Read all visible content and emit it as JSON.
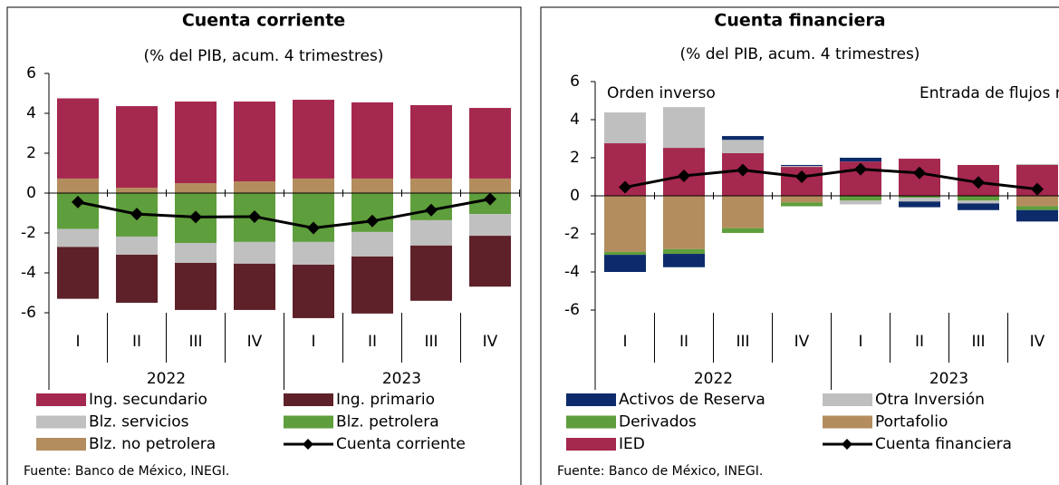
{
  "chart_data": [
    {
      "type": "bar",
      "title": "Cuenta corriente",
      "subtitle": "(% del PIB, acum. 4 trimestres)",
      "categories": [
        "I",
        "II",
        "III",
        "IV",
        "I",
        "II",
        "III",
        "IV"
      ],
      "years": [
        "2022",
        "2023"
      ],
      "ylim": [
        -6,
        6
      ],
      "yticks": [
        -6,
        -4,
        -2,
        0,
        2,
        4,
        6
      ],
      "series": [
        {
          "name": "Blz. no petrolera",
          "color": "#b38d5e",
          "values": [
            0.73,
            0.27,
            0.5,
            0.59,
            0.73,
            0.73,
            0.73,
            0.73
          ]
        },
        {
          "name": "Ing. secundario",
          "color": "#a5284f",
          "values": [
            4.02,
            4.09,
            4.09,
            4.0,
            3.95,
            3.82,
            3.68,
            3.54
          ]
        },
        {
          "name": "Blz. petrolera",
          "color": "#5f9e3c",
          "values": [
            -1.8,
            -2.18,
            -2.5,
            -2.45,
            -2.45,
            -1.95,
            -1.36,
            -1.05
          ]
        },
        {
          "name": "Blz. servicios",
          "color": "#c0c0c0",
          "values": [
            -0.9,
            -0.91,
            -1.0,
            -1.09,
            -1.14,
            -1.23,
            -1.27,
            -1.09
          ]
        },
        {
          "name": "Ing. primario",
          "color": "#5e2129",
          "values": [
            -2.6,
            -2.41,
            -2.36,
            -2.32,
            -2.68,
            -2.86,
            -2.77,
            -2.55
          ]
        },
        {
          "name": "Cuenta corriente",
          "type": "line",
          "color": "#000000",
          "values": [
            -0.45,
            -1.05,
            -1.2,
            -1.18,
            -1.75,
            -1.4,
            -0.85,
            -0.3
          ]
        }
      ],
      "source": "Fuente: Banco de México, INEGI."
    },
    {
      "type": "bar",
      "title": "Cuenta financiera",
      "subtitle": "(% del PIB, acum. 4 trimestres)",
      "annotations": [
        "Orden inverso",
        "Entrada de flujos netos"
      ],
      "categories": [
        "I",
        "II",
        "III",
        "IV",
        "I",
        "II",
        "III",
        "IV"
      ],
      "years": [
        "2022",
        "2023"
      ],
      "ylim": [
        -6,
        6
      ],
      "yticks": [
        -6,
        -4,
        -2,
        0,
        2,
        4,
        6
      ],
      "series": [
        {
          "name": "IED",
          "color": "#a5284f",
          "values": [
            2.76,
            2.52,
            2.24,
            1.52,
            1.8,
            1.95,
            1.62,
            1.62
          ]
        },
        {
          "name": "Portafolio",
          "color": "#b38d5e",
          "values": [
            -2.95,
            -2.8,
            -1.7,
            -0.35,
            0,
            0,
            0,
            -0.55
          ]
        },
        {
          "name": "Derivados",
          "color": "#5f9e3c",
          "values": [
            -0.15,
            -0.25,
            -0.25,
            -0.2,
            -0.25,
            -0.1,
            -0.25,
            -0.2
          ]
        },
        {
          "name": "Otra Inversión",
          "color": "#bfbfbf",
          "values": [
            1.62,
            2.14,
            0.7,
            0.05,
            -0.2,
            -0.2,
            -0.15,
            0.05
          ]
        },
        {
          "name": "Activos de Reserva",
          "color": "#0d2b6b",
          "values": [
            -0.9,
            -0.7,
            0.2,
            0.05,
            0.2,
            -0.3,
            -0.35,
            -0.6
          ]
        },
        {
          "name": "Cuenta financiera",
          "type": "line",
          "color": "#000000",
          "values": [
            0.45,
            1.05,
            1.35,
            1.0,
            1.4,
            1.2,
            0.7,
            0.35
          ]
        }
      ],
      "source": "Fuente: Banco de México, INEGI."
    }
  ]
}
